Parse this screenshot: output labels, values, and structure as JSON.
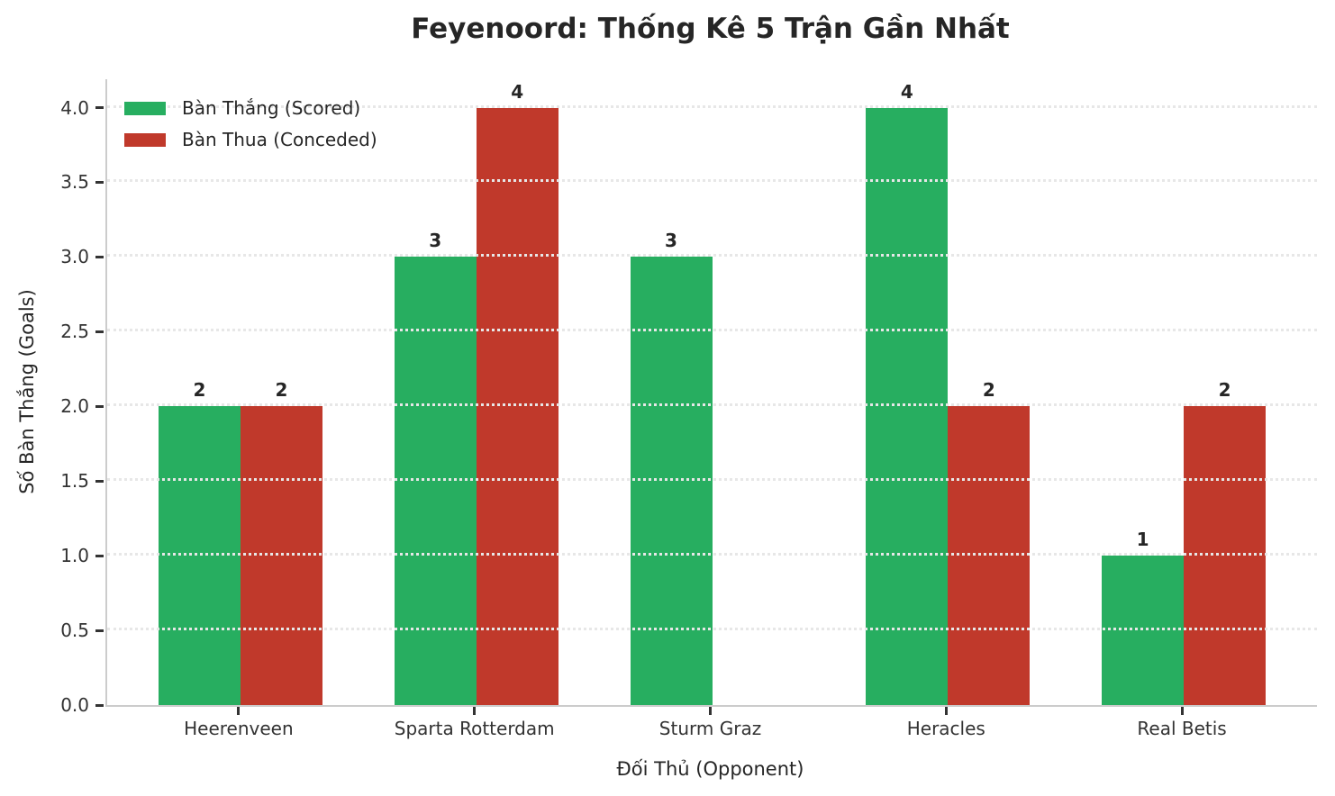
{
  "chart_data": {
    "type": "bar",
    "title": "Feyenoord: Thống Kê 5 Trận Gần Nhất",
    "xlabel": "Đối Thủ (Opponent)",
    "ylabel": "Số Bàn Thắng (Goals)",
    "categories": [
      "Heerenveen",
      "Sparta Rotterdam",
      "Sturm Graz",
      "Heracles",
      "Real Betis"
    ],
    "series": [
      {
        "name": "Bàn Thắng (Scored)",
        "color": "#27ae60",
        "values": [
          2,
          3,
          3,
          4,
          1
        ]
      },
      {
        "name": "Bàn Thua (Conceded)",
        "color": "#c0392b",
        "values": [
          2,
          4,
          0,
          2,
          2
        ]
      }
    ],
    "ylim": [
      0,
      4.19
    ],
    "ytick_labels": [
      "0.0",
      "0.5",
      "1.0",
      "1.5",
      "2.0",
      "2.5",
      "3.0",
      "3.5",
      "4.0"
    ],
    "ytick_values": [
      0,
      0.5,
      1,
      1.5,
      2,
      2.5,
      3,
      3.5,
      4
    ],
    "grid": "horizontal-dotted",
    "legend_position": "upper-left",
    "bar_labels_shown_for_zero": false
  },
  "colors": {
    "background": "#ffffff",
    "text": "#262626",
    "tick": "#333333",
    "spine": "#cccccc",
    "gridline": "#e7e7e7"
  }
}
